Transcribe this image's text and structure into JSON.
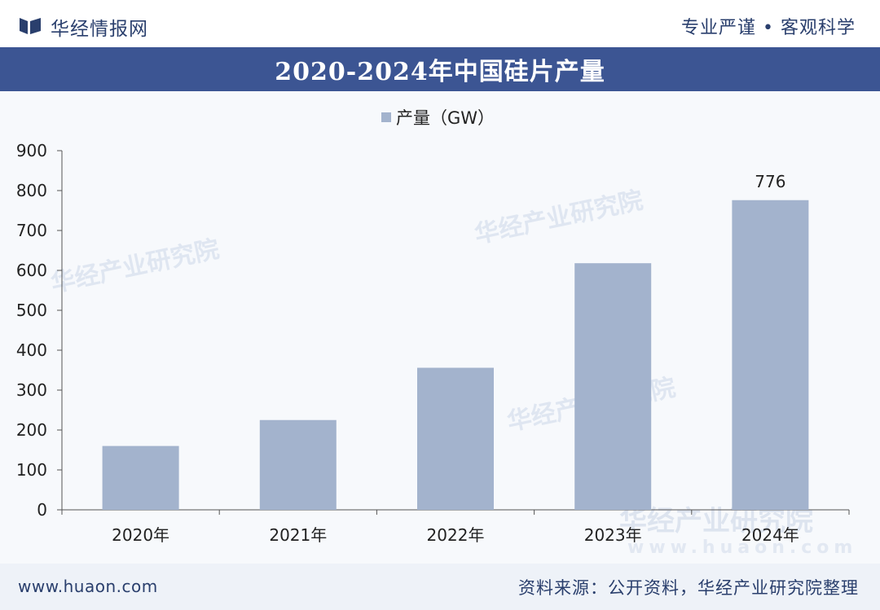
{
  "header": {
    "brand": "华经情报网",
    "slogan": "专业严谨 • 客观科学"
  },
  "footer": {
    "url": "www.huaon.com",
    "source": "资料来源：公开资料，华经产业研究院整理"
  },
  "watermark": {
    "text": "华经产业研究院",
    "url": "www.huaon.com"
  },
  "colors": {
    "bar": "#a3b3cd",
    "title_band": "#3c5593",
    "text": "#2a3f6d"
  },
  "chart_data": {
    "type": "bar",
    "title": "2020-2024年中国硅片产量",
    "legend": "产量（GW）",
    "legend_position": "top-center",
    "categories": [
      "2020年",
      "2021年",
      "2022年",
      "2023年",
      "2024年"
    ],
    "series": [
      {
        "name": "产量（GW）",
        "values": [
          160,
          225,
          356,
          618,
          776
        ]
      }
    ],
    "data_labels": [
      null,
      null,
      null,
      null,
      "776"
    ],
    "yticks": [
      0,
      100,
      200,
      300,
      400,
      500,
      600,
      700,
      800,
      900
    ],
    "ylim": [
      0,
      900
    ],
    "xlabel": "",
    "ylabel": "",
    "grid": false
  }
}
